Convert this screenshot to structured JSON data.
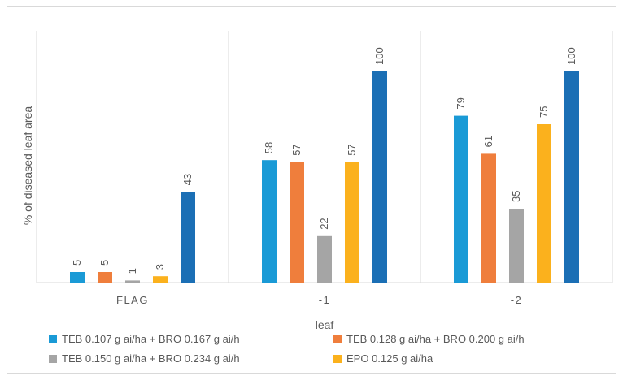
{
  "chart_data": {
    "type": "bar",
    "title": "",
    "xlabel": "leaf",
    "ylabel": "% of diseased leaf area",
    "categories": [
      "FLAG",
      "-1",
      "-2"
    ],
    "ylim": [
      0,
      100
    ],
    "grid": false,
    "legend_position": "bottom",
    "series": [
      {
        "name": "TEB 0.107 g ai/ha + BRO 0.167 g ai/h",
        "color": "#1a9ad6",
        "values": [
          5,
          58,
          79
        ]
      },
      {
        "name": "TEB 0.128 g ai/ha + BRO 0.200 g ai/h",
        "color": "#ef7e3c",
        "values": [
          5,
          57,
          61
        ]
      },
      {
        "name": "TEB 0.150 g ai/ha + BRO 0.234 g ai/h",
        "color": "#a5a5a5",
        "values": [
          1,
          22,
          35
        ]
      },
      {
        "name": "EPO 0.125 g ai/ha",
        "color": "#fbb11d",
        "values": [
          3,
          57,
          75
        ]
      },
      {
        "name": "",
        "color": "#1b6fb5",
        "values": [
          43,
          100,
          100
        ]
      }
    ]
  }
}
